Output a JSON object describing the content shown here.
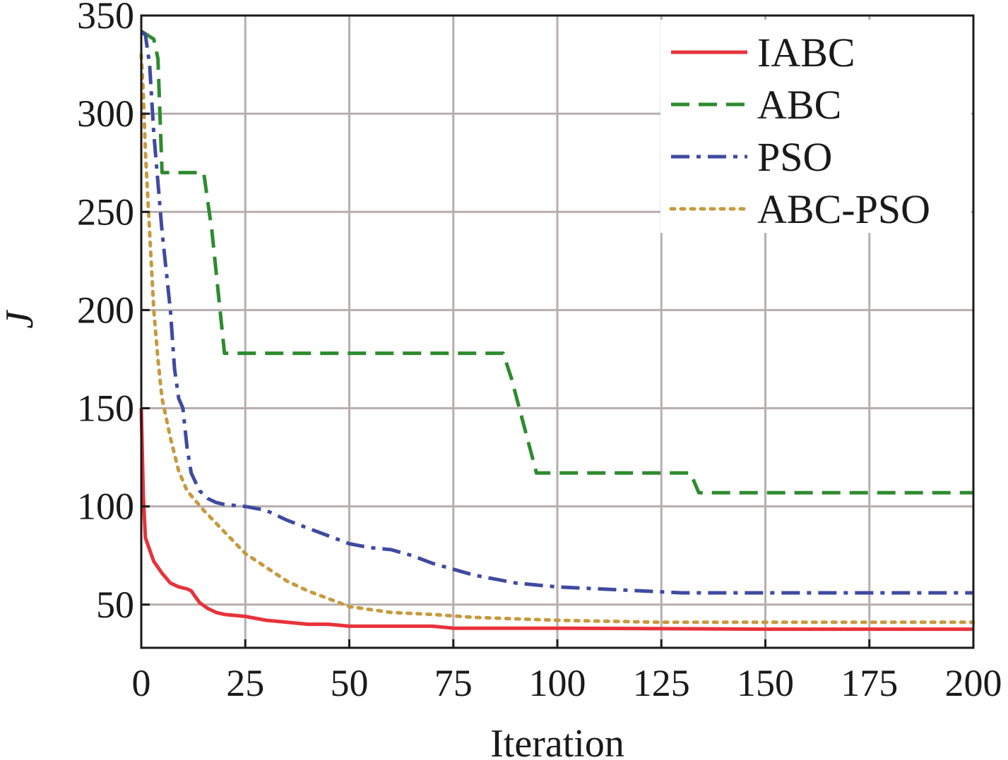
{
  "chart_data": {
    "type": "line",
    "xlabel": "Iteration",
    "ylabel": "J",
    "xlim": [
      0,
      200
    ],
    "ylim": [
      28,
      350
    ],
    "xticks": [
      0,
      25,
      50,
      75,
      100,
      125,
      150,
      175,
      200
    ],
    "yticks": [
      50,
      100,
      150,
      200,
      250,
      300,
      350
    ],
    "grid": true,
    "legend_position": "top-right",
    "series": [
      {
        "name": "IABC",
        "color": "#e8323a",
        "style": "solid",
        "points": [
          [
            0,
            150
          ],
          [
            0.5,
            105
          ],
          [
            1,
            84
          ],
          [
            2,
            78
          ],
          [
            3,
            72
          ],
          [
            5,
            66
          ],
          [
            7,
            61
          ],
          [
            9,
            59
          ],
          [
            11,
            58
          ],
          [
            12,
            57
          ],
          [
            14,
            51
          ],
          [
            16,
            48
          ],
          [
            18,
            46
          ],
          [
            20,
            45
          ],
          [
            25,
            44
          ],
          [
            30,
            42
          ],
          [
            35,
            41
          ],
          [
            40,
            40
          ],
          [
            45,
            40
          ],
          [
            50,
            39
          ],
          [
            60,
            39
          ],
          [
            70,
            39
          ],
          [
            75,
            38
          ],
          [
            100,
            38
          ],
          [
            150,
            37.5
          ],
          [
            200,
            37.5
          ]
        ]
      },
      {
        "name": "ABC",
        "color": "#2e8b2e",
        "style": "dashed",
        "points": [
          [
            0,
            342
          ],
          [
            3,
            338
          ],
          [
            4,
            328
          ],
          [
            5,
            270
          ],
          [
            15,
            270
          ],
          [
            17,
            240
          ],
          [
            20,
            178
          ],
          [
            87,
            178
          ],
          [
            89,
            165
          ],
          [
            95,
            117
          ],
          [
            132,
            117
          ],
          [
            134,
            107
          ],
          [
            200,
            107
          ]
        ]
      },
      {
        "name": "PSO",
        "color": "#3f4aa0",
        "style": "dashdot",
        "points": [
          [
            0,
            342
          ],
          [
            1,
            340
          ],
          [
            2,
            325
          ],
          [
            3,
            290
          ],
          [
            4,
            265
          ],
          [
            5,
            240
          ],
          [
            6,
            220
          ],
          [
            7,
            200
          ],
          [
            8,
            170
          ],
          [
            9,
            155
          ],
          [
            10,
            150
          ],
          [
            11,
            130
          ],
          [
            12,
            117
          ],
          [
            14,
            108
          ],
          [
            16,
            104
          ],
          [
            18,
            102
          ],
          [
            20,
            101
          ],
          [
            25,
            100
          ],
          [
            30,
            98
          ],
          [
            35,
            93
          ],
          [
            40,
            89
          ],
          [
            45,
            85
          ],
          [
            50,
            81
          ],
          [
            55,
            79
          ],
          [
            60,
            78
          ],
          [
            65,
            75
          ],
          [
            70,
            71
          ],
          [
            75,
            68
          ],
          [
            80,
            65
          ],
          [
            85,
            63
          ],
          [
            90,
            61
          ],
          [
            95,
            60
          ],
          [
            100,
            59
          ],
          [
            110,
            58
          ],
          [
            120,
            57
          ],
          [
            130,
            56
          ],
          [
            140,
            56
          ],
          [
            200,
            56
          ]
        ]
      },
      {
        "name": "ABC-PSO",
        "color": "#c79a3e",
        "style": "dotted",
        "points": [
          [
            0,
            330
          ],
          [
            0.5,
            310
          ],
          [
            1,
            280
          ],
          [
            2,
            240
          ],
          [
            3,
            200
          ],
          [
            4,
            175
          ],
          [
            5,
            155
          ],
          [
            7,
            135
          ],
          [
            9,
            118
          ],
          [
            11,
            108
          ],
          [
            15,
            98
          ],
          [
            20,
            87
          ],
          [
            25,
            76
          ],
          [
            30,
            69
          ],
          [
            35,
            62
          ],
          [
            40,
            57
          ],
          [
            45,
            53
          ],
          [
            50,
            49
          ],
          [
            60,
            46
          ],
          [
            70,
            45
          ],
          [
            80,
            43.5
          ],
          [
            100,
            42
          ],
          [
            125,
            41
          ],
          [
            150,
            41
          ],
          [
            200,
            41
          ]
        ]
      }
    ]
  }
}
